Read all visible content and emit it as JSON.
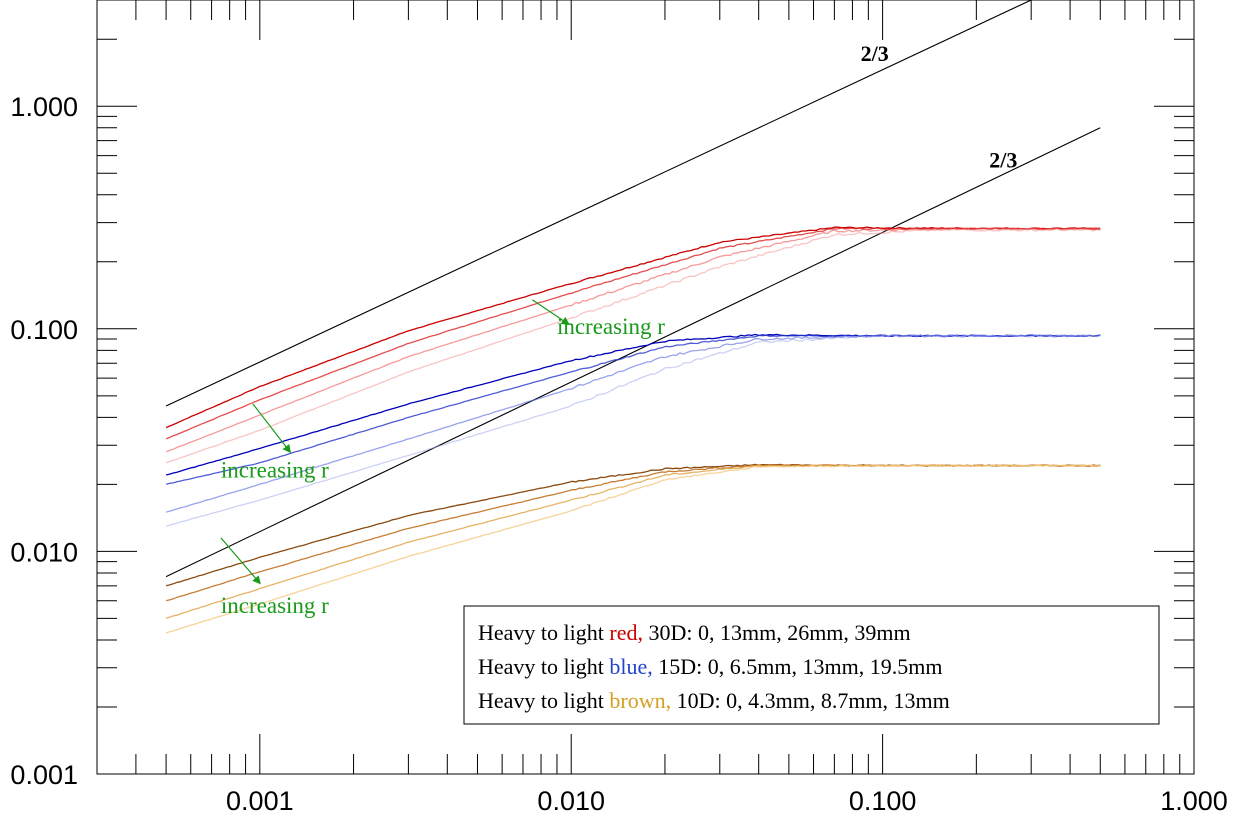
{
  "chart_data": {
    "type": "line",
    "title": "",
    "xlabel": "",
    "ylabel": "",
    "xscale": "log",
    "yscale": "log",
    "xlim": [
      0.0003,
      1.0
    ],
    "ylim": [
      0.001,
      3.0
    ],
    "x_ticks": [
      {
        "value": 0.001,
        "label": "0.001"
      },
      {
        "value": 0.01,
        "label": "0.010"
      },
      {
        "value": 0.1,
        "label": "0.100"
      },
      {
        "value": 1.0,
        "label": "1.000"
      }
    ],
    "y_ticks": [
      {
        "value": 0.001,
        "label": "0.001"
      },
      {
        "value": 0.01,
        "label": "0.010"
      },
      {
        "value": 0.1,
        "label": "0.100"
      },
      {
        "value": 1.0,
        "label": "1.000"
      }
    ],
    "grid": false,
    "series": [
      {
        "group": "red",
        "color": "#cc0000",
        "opacity": 1.0,
        "points": [
          [
            0.0005,
            0.036
          ],
          [
            0.001,
            0.055
          ],
          [
            0.003,
            0.098
          ],
          [
            0.01,
            0.16
          ],
          [
            0.03,
            0.245
          ],
          [
            0.07,
            0.285
          ],
          [
            0.15,
            0.283
          ],
          [
            0.5,
            0.282
          ]
        ]
      },
      {
        "group": "red",
        "color": "#dd2222",
        "opacity": 0.8,
        "points": [
          [
            0.0005,
            0.032
          ],
          [
            0.001,
            0.048
          ],
          [
            0.003,
            0.086
          ],
          [
            0.01,
            0.145
          ],
          [
            0.03,
            0.23
          ],
          [
            0.07,
            0.282
          ],
          [
            0.15,
            0.282
          ],
          [
            0.5,
            0.282
          ]
        ]
      },
      {
        "group": "red",
        "color": "#ee5555",
        "opacity": 0.6,
        "points": [
          [
            0.0005,
            0.028
          ],
          [
            0.001,
            0.041
          ],
          [
            0.003,
            0.075
          ],
          [
            0.01,
            0.128
          ],
          [
            0.03,
            0.21
          ],
          [
            0.07,
            0.275
          ],
          [
            0.15,
            0.281
          ],
          [
            0.5,
            0.281
          ]
        ]
      },
      {
        "group": "red",
        "color": "#f58a8a",
        "opacity": 0.5,
        "points": [
          [
            0.0005,
            0.025
          ],
          [
            0.001,
            0.035
          ],
          [
            0.003,
            0.064
          ],
          [
            0.01,
            0.112
          ],
          [
            0.03,
            0.19
          ],
          [
            0.07,
            0.265
          ],
          [
            0.15,
            0.278
          ],
          [
            0.5,
            0.278
          ]
        ]
      },
      {
        "group": "blue",
        "color": "#0000bb",
        "opacity": 1.0,
        "points": [
          [
            0.0005,
            0.022
          ],
          [
            0.001,
            0.029
          ],
          [
            0.003,
            0.046
          ],
          [
            0.01,
            0.072
          ],
          [
            0.02,
            0.088
          ],
          [
            0.04,
            0.094
          ],
          [
            0.1,
            0.093
          ],
          [
            0.5,
            0.093
          ]
        ]
      },
      {
        "group": "blue",
        "color": "#2233cc",
        "opacity": 0.8,
        "points": [
          [
            0.0005,
            0.02
          ],
          [
            0.001,
            0.025
          ],
          [
            0.003,
            0.04
          ],
          [
            0.01,
            0.064
          ],
          [
            0.02,
            0.083
          ],
          [
            0.04,
            0.093
          ],
          [
            0.1,
            0.093
          ],
          [
            0.5,
            0.093
          ]
        ]
      },
      {
        "group": "blue",
        "color": "#5566dd",
        "opacity": 0.6,
        "points": [
          [
            0.0005,
            0.015
          ],
          [
            0.001,
            0.02
          ],
          [
            0.003,
            0.032
          ],
          [
            0.01,
            0.054
          ],
          [
            0.02,
            0.075
          ],
          [
            0.04,
            0.09
          ],
          [
            0.1,
            0.093
          ],
          [
            0.5,
            0.093
          ]
        ]
      },
      {
        "group": "blue",
        "color": "#9aa6ee",
        "opacity": 0.5,
        "points": [
          [
            0.0005,
            0.013
          ],
          [
            0.001,
            0.017
          ],
          [
            0.003,
            0.027
          ],
          [
            0.01,
            0.045
          ],
          [
            0.02,
            0.066
          ],
          [
            0.04,
            0.087
          ],
          [
            0.1,
            0.093
          ],
          [
            0.5,
            0.093
          ]
        ]
      },
      {
        "group": "brown",
        "color": "#8a4a10",
        "opacity": 1.0,
        "points": [
          [
            0.0005,
            0.007
          ],
          [
            0.001,
            0.0094
          ],
          [
            0.003,
            0.0145
          ],
          [
            0.01,
            0.0205
          ],
          [
            0.02,
            0.0235
          ],
          [
            0.04,
            0.0245
          ],
          [
            0.1,
            0.0243
          ],
          [
            0.5,
            0.0243
          ]
        ]
      },
      {
        "group": "brown",
        "color": "#c07020",
        "opacity": 0.9,
        "points": [
          [
            0.0005,
            0.006
          ],
          [
            0.001,
            0.0081
          ],
          [
            0.003,
            0.0127
          ],
          [
            0.01,
            0.0188
          ],
          [
            0.02,
            0.0228
          ],
          [
            0.04,
            0.0244
          ],
          [
            0.1,
            0.0243
          ],
          [
            0.5,
            0.0243
          ]
        ]
      },
      {
        "group": "brown",
        "color": "#e0a040",
        "opacity": 0.8,
        "points": [
          [
            0.0005,
            0.005
          ],
          [
            0.001,
            0.0068
          ],
          [
            0.003,
            0.011
          ],
          [
            0.01,
            0.017
          ],
          [
            0.02,
            0.022
          ],
          [
            0.04,
            0.0243
          ],
          [
            0.1,
            0.0243
          ],
          [
            0.5,
            0.0243
          ]
        ]
      },
      {
        "group": "brown",
        "color": "#f5c880",
        "opacity": 0.8,
        "points": [
          [
            0.0005,
            0.0043
          ],
          [
            0.001,
            0.0058
          ],
          [
            0.003,
            0.0095
          ],
          [
            0.01,
            0.0152
          ],
          [
            0.02,
            0.021
          ],
          [
            0.04,
            0.024
          ],
          [
            0.1,
            0.0243
          ],
          [
            0.5,
            0.0243
          ]
        ]
      }
    ],
    "reference_lines": [
      {
        "label": "2/3",
        "slope": 0.6667,
        "points": [
          [
            0.0005,
            0.045
          ],
          [
            0.3,
            3.0
          ]
        ]
      },
      {
        "label": "2/3",
        "slope": 0.6667,
        "points": [
          [
            0.0005,
            0.0077
          ],
          [
            0.5,
            0.8
          ]
        ]
      }
    ],
    "annotations": [
      {
        "text": "increasing r",
        "color": "#1a9a1a",
        "anchor": [
          0.009,
          0.095
        ]
      },
      {
        "text": "increasing r",
        "color": "#1a9a1a",
        "anchor": [
          0.00075,
          0.022
        ]
      },
      {
        "text": "increasing r",
        "color": "#1a9a1a",
        "anchor": [
          0.00075,
          0.0053
        ]
      }
    ],
    "legend": {
      "placement": "bottom-right",
      "entries": [
        {
          "prefix": "Heavy to light ",
          "colorword": "red,",
          "color": "#cc0000",
          "suffix": " 30D: 0, 13mm, 26mm, 39mm"
        },
        {
          "prefix": "Heavy to light ",
          "colorword": "blue,",
          "color": "#2244cc",
          "suffix": " 15D: 0, 6.5mm, 13mm, 19.5mm"
        },
        {
          "prefix": "Heavy to light ",
          "colorword": "brown,",
          "color": "#d4a020",
          "suffix": " 10D: 0, 4.3mm, 8.7mm, 13mm"
        }
      ]
    }
  }
}
